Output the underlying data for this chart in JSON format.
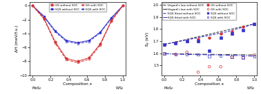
{
  "left_x": [
    0.0,
    0.125,
    0.25,
    0.375,
    0.5,
    0.625,
    0.75,
    0.875,
    1.0
  ],
  "left_GS_without_SOC": [
    0.0,
    -1.8,
    -5.2,
    -7.6,
    -8.0,
    -7.5,
    -5.5,
    -2.1,
    0.0
  ],
  "left_GS_with_SOC": [
    0.0,
    -1.9,
    -5.4,
    -7.8,
    -8.2,
    -7.7,
    -5.65,
    -2.2,
    0.0
  ],
  "left_SQS_without_SOC": [
    0.0,
    -1.5,
    -3.6,
    -5.0,
    -5.3,
    -5.0,
    -3.8,
    -1.7,
    0.0
  ],
  "left_SQS_with_SOC": [
    0.0,
    -1.6,
    -3.75,
    -5.15,
    -5.45,
    -5.15,
    -3.9,
    -1.8,
    0.0
  ],
  "right_x_lines": [
    0.0,
    0.1,
    0.2,
    0.3,
    0.4,
    0.5,
    0.6,
    0.7,
    0.8,
    0.9,
    1.0
  ],
  "vegard_without_SOC": [
    1.673,
    1.69,
    1.707,
    1.724,
    1.741,
    1.758,
    1.775,
    1.792,
    1.809,
    1.826,
    1.843
  ],
  "vegard_with_SOC": [
    1.597,
    1.596,
    1.595,
    1.594,
    1.593,
    1.592,
    1.591,
    1.59,
    1.589,
    1.588,
    1.587
  ],
  "SQS_fitted_without_SOC": [
    1.673,
    1.688,
    1.703,
    1.718,
    1.733,
    1.748,
    1.763,
    1.778,
    1.8,
    1.82,
    1.843
  ],
  "SQS_fitted_with_SOC": [
    1.597,
    1.594,
    1.592,
    1.59,
    1.589,
    1.588,
    1.587,
    1.585,
    1.582,
    1.58,
    1.575
  ],
  "right_GS_without_SOC_x": [
    0.0,
    0.125,
    0.25,
    0.375,
    0.5,
    0.625,
    0.75,
    0.875,
    1.0
  ],
  "right_GS_without_SOC_y": [
    1.673,
    1.69,
    1.7,
    1.715,
    1.73,
    1.76,
    1.78,
    1.82,
    1.843
  ],
  "right_GS_with_SOC_x": [
    0.0,
    0.125,
    0.25,
    0.375,
    0.5,
    0.625,
    0.75,
    0.875,
    1.0
  ],
  "right_GS_with_SOC_y": [
    1.597,
    1.593,
    1.61,
    1.445,
    1.49,
    1.49,
    1.57,
    1.565,
    1.587
  ],
  "right_SQS_without_SOC_x": [
    0.0,
    0.125,
    0.25,
    0.375,
    0.5,
    0.625,
    0.75,
    0.875,
    1.0
  ],
  "right_SQS_without_SOC_y": [
    1.673,
    1.683,
    1.698,
    1.7,
    1.62,
    1.73,
    1.76,
    1.79,
    1.843
  ],
  "right_SQS_with_SOC_x": [
    0.0,
    0.125,
    0.25,
    0.375,
    0.5,
    0.625,
    0.75,
    0.875,
    1.0
  ],
  "right_SQS_with_SOC_y": [
    1.597,
    1.59,
    1.592,
    1.59,
    1.576,
    1.578,
    1.572,
    1.563,
    1.575
  ],
  "color_red": "#d63232",
  "color_blue": "#3535cc",
  "color_darkgray": "#333333",
  "ylim_left": [
    -10.0,
    0.5
  ],
  "ylim_right": [
    1.42,
    2.02
  ],
  "yticks_left": [
    0,
    -2,
    -4,
    -6,
    -8,
    -10
  ],
  "yticks_right": [
    1.5,
    1.6,
    1.7,
    1.8,
    1.9,
    2.0
  ],
  "xticks": [
    0.0,
    0.2,
    0.4,
    0.6,
    0.8,
    1.0
  ],
  "ylabel_left": "ΔH (meV/f.u.)",
  "ylabel_right": "E$_g$ (eV)",
  "xlabel": "Composition x",
  "label_mos2": "MoS$_2$",
  "label_ws2": "WS$_2$"
}
